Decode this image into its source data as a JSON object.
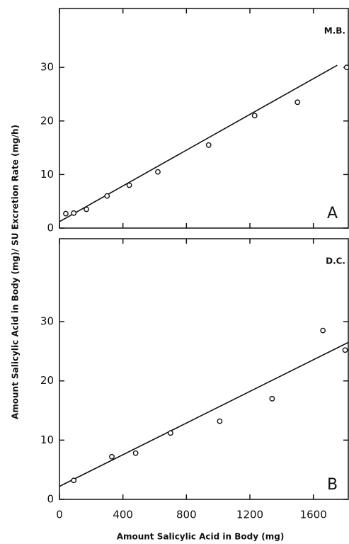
{
  "chart_data": [
    {
      "type": "scatter",
      "label": "M.B.",
      "panel": "A",
      "ylabel": "Amount Salicylic Acid in Body (mg)/ SU Excretion Rate (mg/h)",
      "x": [
        40,
        90,
        170,
        300,
        440,
        620,
        940,
        1230,
        1500,
        1810
      ],
      "values": [
        2.7,
        2.8,
        3.5,
        6,
        8,
        10.5,
        15.5,
        21,
        23.5,
        30
      ],
      "fit": {
        "x": [
          0,
          1750
        ],
        "values": [
          1.2,
          30.4
        ]
      },
      "color": "#111111",
      "xlim": [
        0,
        1820
      ],
      "xticks": [
        0,
        400,
        800,
        1200,
        1600
      ],
      "ylim": [
        0,
        41
      ],
      "yticks": [
        0,
        10,
        20,
        30
      ]
    },
    {
      "type": "scatter",
      "label": "D.C.",
      "panel": "B",
      "xlabel": "Amount Salicylic Acid in Body (mg)",
      "x": [
        90,
        330,
        480,
        700,
        1010,
        1340,
        1660,
        1800
      ],
      "values": [
        3.2,
        7.2,
        7.8,
        11.2,
        13.2,
        17,
        28.5,
        25.2
      ],
      "fit": {
        "x": [
          0,
          1820
        ],
        "values": [
          2.2,
          26.5
        ]
      },
      "color": "#111111",
      "xlim": [
        0,
        1820
      ],
      "xticks": [
        0,
        400,
        800,
        1200,
        1600
      ],
      "ylim": [
        0,
        44
      ],
      "yticks": [
        0,
        10,
        20,
        30
      ]
    }
  ]
}
